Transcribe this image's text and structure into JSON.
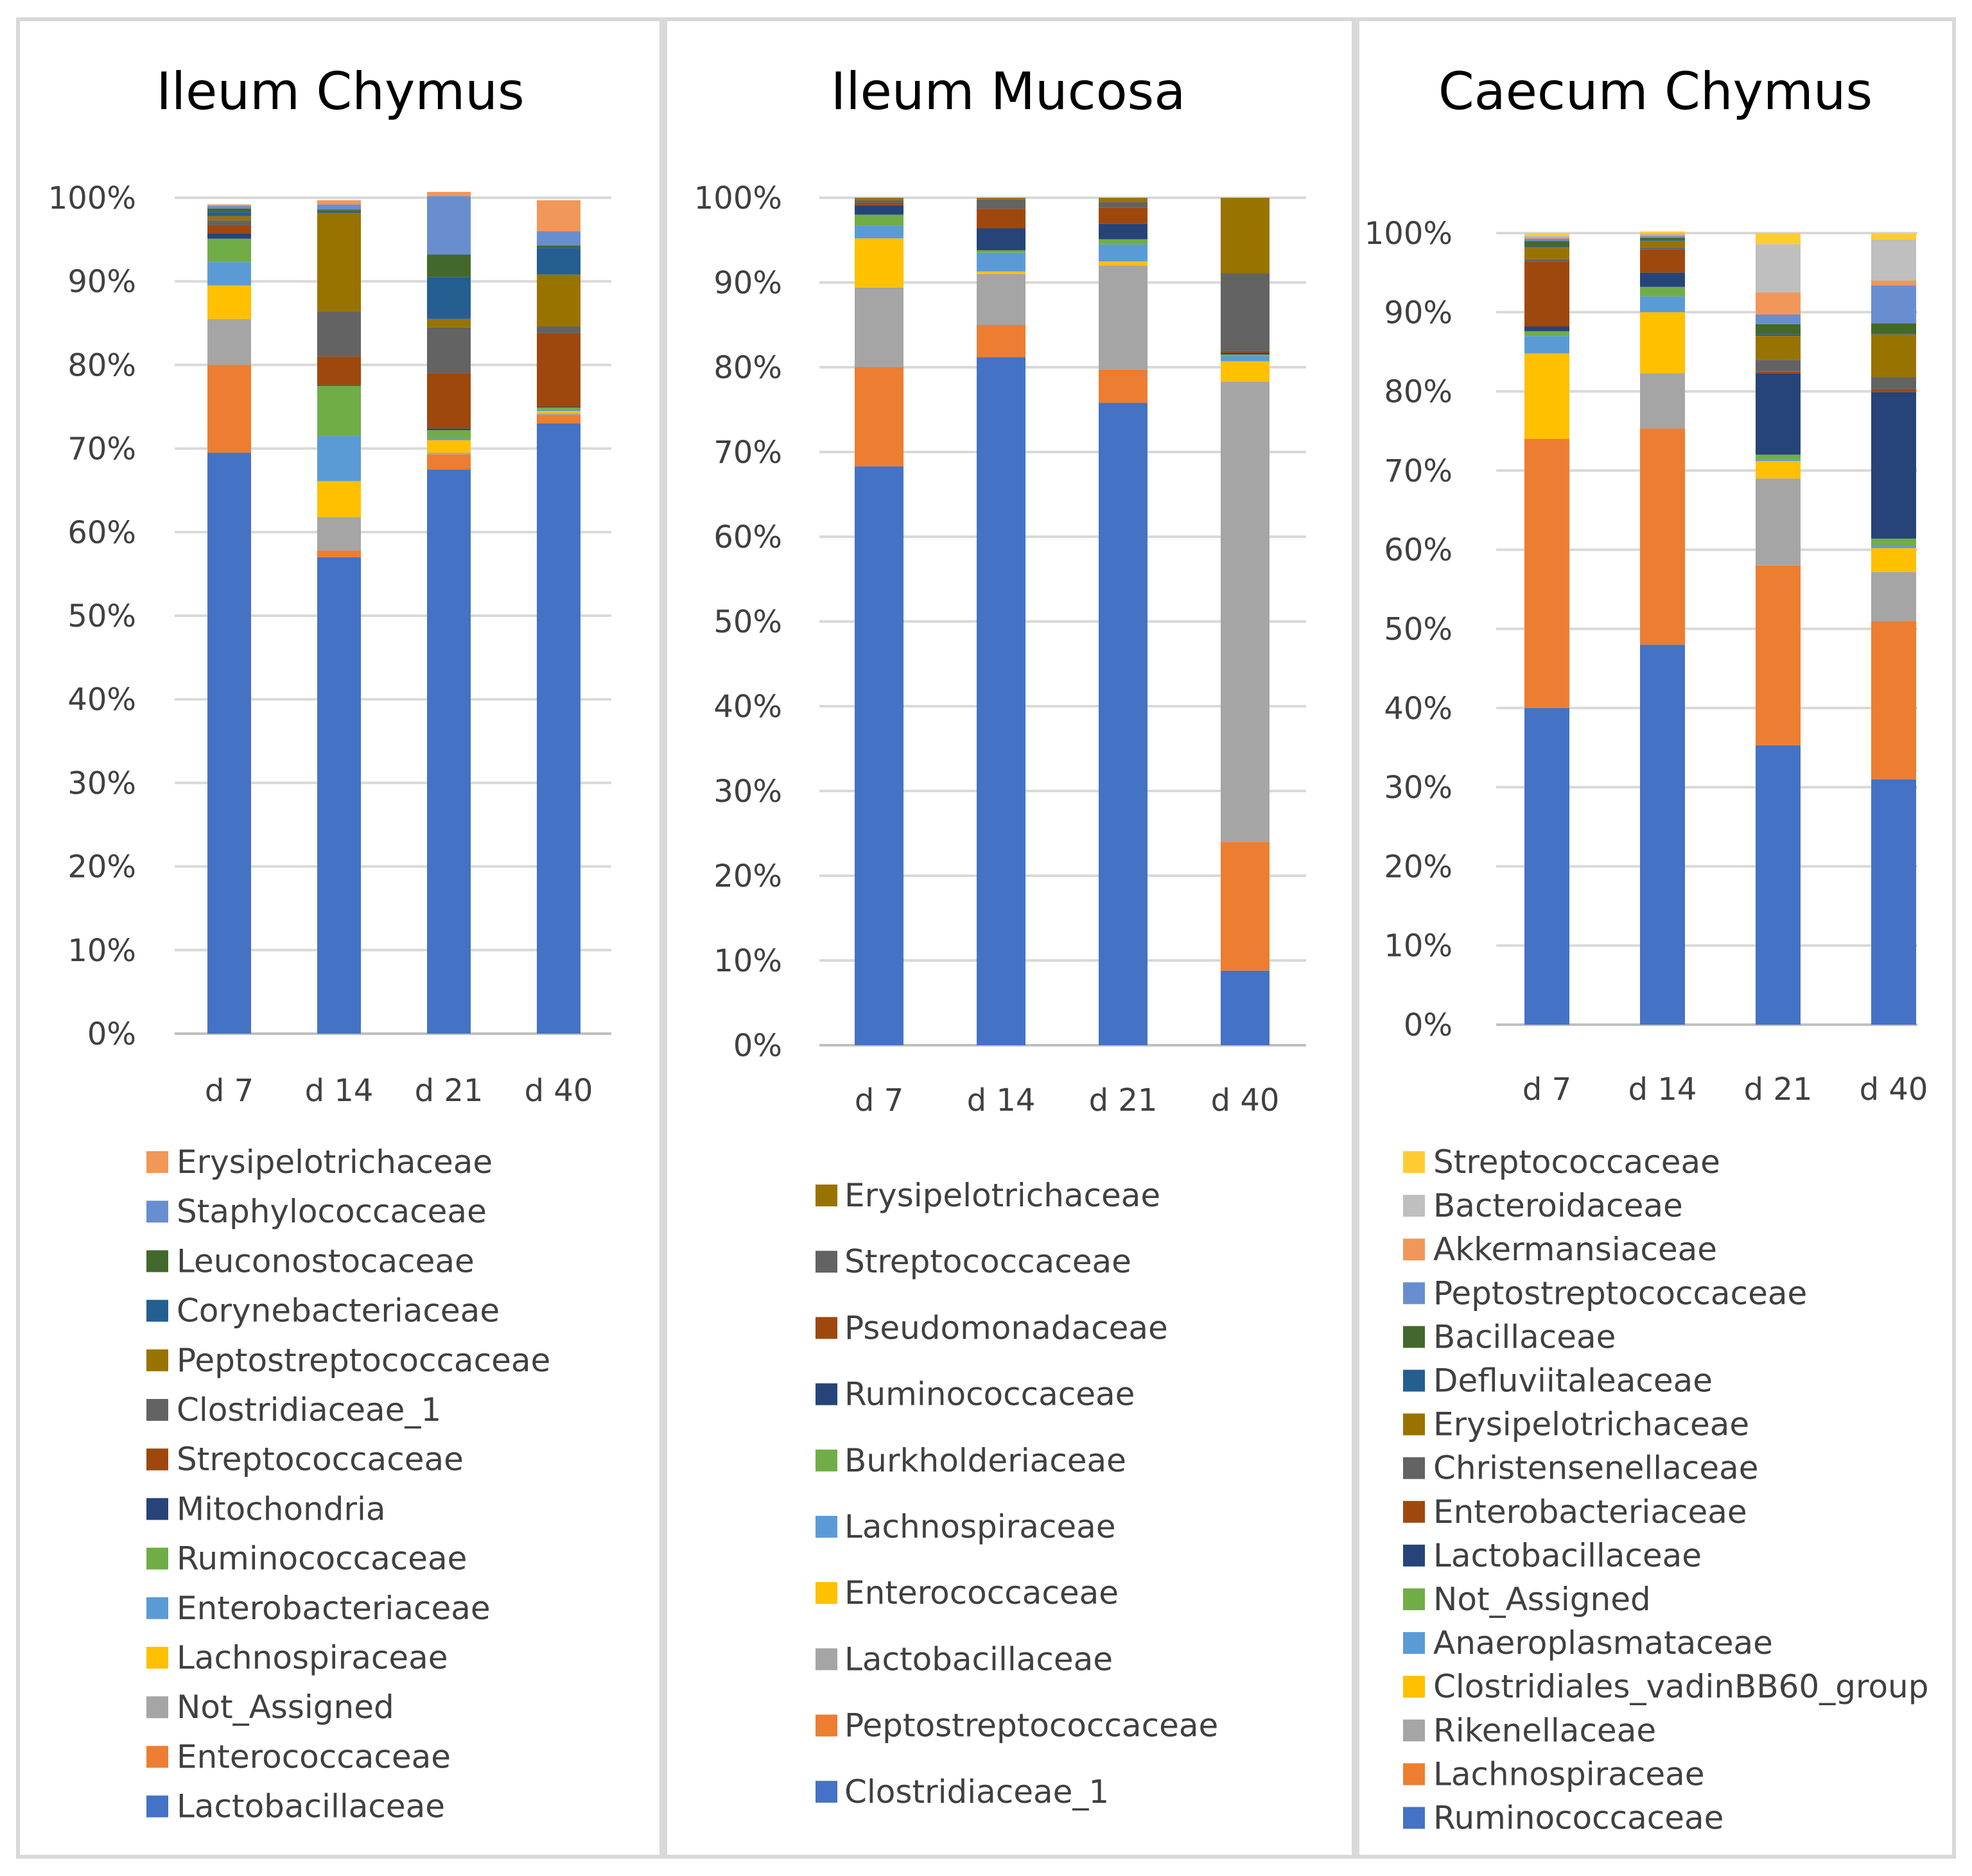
{
  "chart_data": [
    {
      "type": "bar",
      "stacked": true,
      "title": "Ileum Chymus",
      "categories": [
        "d 7",
        "d 14",
        "d 21",
        "d 40"
      ],
      "y_ticks": [
        "0%",
        "10%",
        "20%",
        "30%",
        "40%",
        "50%",
        "60%",
        "70%",
        "80%",
        "90%",
        "100%"
      ],
      "ylim": [
        0,
        100
      ],
      "grid": true,
      "legend_position": "bottom",
      "series": [
        {
          "name": "Lactobacillaceae",
          "color": "#4472C4",
          "values": [
            69.5,
            57.0,
            67.5,
            73.0
          ]
        },
        {
          "name": "Enterococcaceae",
          "color": "#ED7D31",
          "values": [
            10.5,
            0.8,
            1.8,
            1.0
          ]
        },
        {
          "name": "Not_Assigned",
          "color": "#A5A5A5",
          "values": [
            5.5,
            4.0,
            0.2,
            0.2
          ]
        },
        {
          "name": "Lachnospiraceae",
          "color": "#FFC000",
          "values": [
            4.0,
            4.3,
            1.5,
            0.3
          ]
        },
        {
          "name": "Enterobacteriaceae",
          "color": "#5B9BD5",
          "values": [
            2.8,
            5.4,
            0.2,
            0.2
          ]
        },
        {
          "name": "Ruminococcaceae",
          "color": "#70AD47",
          "values": [
            2.8,
            6.0,
            1.0,
            0.2
          ]
        },
        {
          "name": "Mitochondria",
          "color": "#264478",
          "values": [
            0.6,
            0.1,
            0.2,
            0.1
          ]
        },
        {
          "name": "Streptococcaceae",
          "color": "#9E480E",
          "values": [
            1.0,
            3.4,
            6.6,
            8.8
          ]
        },
        {
          "name": "Clostridiaceae_1",
          "color": "#636363",
          "values": [
            0.6,
            5.4,
            5.5,
            0.8
          ]
        },
        {
          "name": "Peptostreptococcaceae",
          "color": "#997300",
          "values": [
            0.5,
            11.8,
            1.0,
            6.2
          ]
        },
        {
          "name": "Corynebacteriaceae",
          "color": "#255E91",
          "values": [
            0.5,
            0.2,
            5.0,
            3.2
          ]
        },
        {
          "name": "Leuconostocaceae",
          "color": "#43682B",
          "values": [
            0.4,
            0.2,
            2.7,
            0.3
          ]
        },
        {
          "name": "Staphylococcaceae",
          "color": "#698ED0",
          "values": [
            0.3,
            0.6,
            7.0,
            1.7
          ]
        },
        {
          "name": "Erysipelotrichaceae",
          "color": "#F1975A",
          "values": [
            0.2,
            0.5,
            0.5,
            3.7
          ]
        }
      ]
    },
    {
      "type": "bar",
      "stacked": true,
      "title": "Ileum Mucosa",
      "categories": [
        "d 7",
        "d 14",
        "d 21",
        "d 40"
      ],
      "y_ticks": [
        "0%",
        "10%",
        "20%",
        "30%",
        "40%",
        "50%",
        "60%",
        "70%",
        "80%",
        "90%",
        "100%"
      ],
      "ylim": [
        0,
        100
      ],
      "grid": true,
      "legend_position": "bottom",
      "series": [
        {
          "name": "Clostridiaceae_1",
          "color": "#4472C4",
          "values": [
            68.3,
            81.2,
            75.8,
            8.8
          ]
        },
        {
          "name": "Peptostreptococcaceae",
          "color": "#ED7D31",
          "values": [
            11.7,
            3.8,
            3.9,
            15.2
          ]
        },
        {
          "name": "Lactobacillaceae",
          "color": "#A5A5A5",
          "values": [
            9.4,
            6.0,
            12.3,
            54.3
          ]
        },
        {
          "name": "Enterococcaceae",
          "color": "#FFC000",
          "values": [
            5.8,
            0.3,
            0.5,
            2.4
          ]
        },
        {
          "name": "Lachnospiraceae",
          "color": "#5B9BD5",
          "values": [
            1.5,
            2.2,
            2.0,
            0.6
          ]
        },
        {
          "name": "Burkholderiaceae",
          "color": "#70AD47",
          "values": [
            1.3,
            0.3,
            0.6,
            0.2
          ]
        },
        {
          "name": "Ruminococcaceae",
          "color": "#264478",
          "values": [
            1.1,
            2.6,
            1.8,
            0.2
          ]
        },
        {
          "name": "Pseudomonadaceae",
          "color": "#9E480E",
          "values": [
            0.3,
            2.3,
            1.9,
            0.2
          ]
        },
        {
          "name": "Streptococcaceae",
          "color": "#636363",
          "values": [
            0.3,
            1.1,
            0.7,
            9.2
          ]
        },
        {
          "name": "Erysipelotrichaceae",
          "color": "#997300",
          "values": [
            0.3,
            0.2,
            0.5,
            8.9
          ]
        }
      ]
    },
    {
      "type": "bar",
      "stacked": true,
      "title": "Caecum Chymus",
      "categories": [
        "d 7",
        "d 14",
        "d 21",
        "d 40"
      ],
      "y_ticks": [
        "0%",
        "10%",
        "20%",
        "30%",
        "40%",
        "50%",
        "60%",
        "70%",
        "80%",
        "90%",
        "100%"
      ],
      "ylim": [
        0,
        100
      ],
      "grid": true,
      "legend_position": "bottom",
      "series": [
        {
          "name": "Ruminococcaceae",
          "color": "#4472C4",
          "values": [
            40.0,
            48.0,
            35.3,
            31.0
          ]
        },
        {
          "name": "Lachnospiraceae",
          "color": "#ED7D31",
          "values": [
            34.0,
            27.3,
            22.7,
            20.0
          ]
        },
        {
          "name": "Rikenellaceae",
          "color": "#A5A5A5",
          "values": [
            0.0,
            7.0,
            11.0,
            6.2
          ]
        },
        {
          "name": "Clostridiales_vadinBB60_group",
          "color": "#FFC000",
          "values": [
            10.8,
            7.7,
            2.2,
            3.0
          ]
        },
        {
          "name": "Anaeroplasmataceae",
          "color": "#5B9BD5",
          "values": [
            2.2,
            2.0,
            0.2,
            0.3
          ]
        },
        {
          "name": "Not_Assigned",
          "color": "#70AD47",
          "values": [
            0.6,
            1.2,
            0.6,
            0.9
          ]
        },
        {
          "name": "Lactobacillaceae",
          "color": "#264478",
          "values": [
            0.6,
            1.8,
            10.3,
            18.5
          ]
        },
        {
          "name": "Enterobacteriaceae",
          "color": "#9E480E",
          "values": [
            8.2,
            2.9,
            0.2,
            0.4
          ]
        },
        {
          "name": "Christensenellaceae",
          "color": "#636363",
          "values": [
            0.3,
            0.3,
            1.5,
            1.5
          ]
        },
        {
          "name": "Erysipelotrichaceae",
          "color": "#997300",
          "values": [
            1.5,
            0.8,
            3.0,
            5.4
          ]
        },
        {
          "name": "Defluviitaleaceae",
          "color": "#255E91",
          "values": [
            0.1,
            0.1,
            0.2,
            0.1
          ]
        },
        {
          "name": "Bacillaceae",
          "color": "#43682B",
          "values": [
            0.7,
            0.3,
            1.3,
            1.3
          ]
        },
        {
          "name": "Peptostreptococcaceae",
          "color": "#698ED0",
          "values": [
            0.3,
            0.2,
            1.2,
            4.8
          ]
        },
        {
          "name": "Akkermansiaceae",
          "color": "#F1975A",
          "values": [
            0.2,
            0.2,
            2.8,
            0.6
          ]
        },
        {
          "name": "Bacteroidaceae",
          "color": "#BFBFBF",
          "values": [
            0.2,
            0.2,
            6.1,
            5.2
          ]
        },
        {
          "name": "Streptococcaceae",
          "color": "#FFCD33",
          "values": [
            0.3,
            0.2,
            1.4,
            0.8
          ]
        }
      ]
    }
  ]
}
